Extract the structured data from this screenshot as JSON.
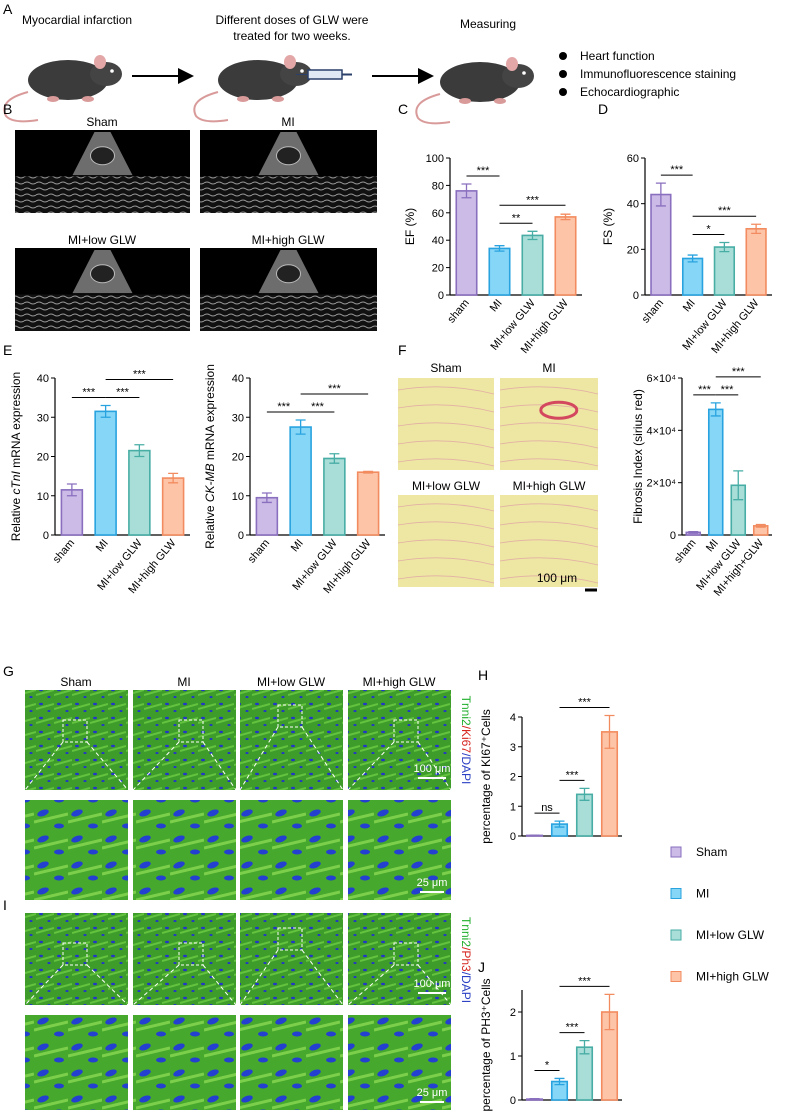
{
  "panels": {
    "A": {
      "letter": "A",
      "step1": "Myocardial infarction",
      "step2": [
        "Different doses of GLW were",
        "treated for two weeks."
      ],
      "step3": "Measuring",
      "bullets": [
        "Heart function",
        "Immunofluorescence staining",
        "Echocardiographic"
      ]
    },
    "B": {
      "letter": "B",
      "labels": [
        "Sham",
        "MI",
        "MI+low GLW",
        "MI+high GLW"
      ]
    },
    "C": {
      "letter": "C"
    },
    "D": {
      "letter": "D"
    },
    "E": {
      "letter": "E"
    },
    "F": {
      "letter": "F",
      "labels": [
        "Sham",
        "MI",
        "MI+low GLW",
        "MI+high GLW"
      ],
      "scale": "100 μm"
    },
    "G": {
      "letter": "G",
      "labels": [
        "Sham",
        "MI",
        "MI+low GLW",
        "MI+high GLW"
      ],
      "stain": [
        "Tnni2",
        "/Ki67",
        "/DAPI"
      ],
      "scale_top": "100 μm",
      "scale_bottom": "25 μm"
    },
    "H": {
      "letter": "H"
    },
    "I": {
      "letter": "I",
      "stain": [
        "Tnni2",
        "/Ph3",
        "/DAPI"
      ],
      "scale_top": "100 μm",
      "scale_bottom": "25 μm"
    },
    "J": {
      "letter": "J"
    }
  },
  "stain_colors": [
    "#1fae2b",
    "#d6241f",
    "#2a3fc4"
  ],
  "group_colors": {
    "fill": [
      "#cbbbe6",
      "#86d6f7",
      "#a9ded8",
      "#fdc4a8"
    ],
    "edge": [
      "#8a6fbf",
      "#29a3df",
      "#47ada5",
      "#f28b5f"
    ]
  },
  "legend": [
    "Sham",
    "MI",
    "MI+low GLW",
    "MI+high GLW"
  ],
  "chart_data": [
    {
      "type": "bar",
      "ylabel": "EF (%)",
      "categories": [
        "sham",
        "MI",
        "MI+low GLW",
        "MI+high GLW"
      ],
      "values": [
        76,
        34,
        43.5,
        57
      ],
      "errors": [
        5,
        2,
        3,
        2
      ],
      "ylim": [
        0,
        100
      ],
      "yticks": [
        0,
        20,
        40,
        60,
        80,
        100
      ],
      "annotations": [
        {
          "label": "***",
          "between": [
            0,
            1
          ]
        },
        {
          "label": "**",
          "between": [
            1,
            2
          ]
        },
        {
          "label": "***",
          "between": [
            1,
            3
          ]
        }
      ]
    },
    {
      "type": "bar",
      "ylabel": "FS (%)",
      "categories": [
        "sham",
        "MI",
        "MI+low GLW",
        "MI+high GLW"
      ],
      "values": [
        44,
        16,
        21,
        29
      ],
      "errors": [
        5,
        1.5,
        2,
        2
      ],
      "ylim": [
        0,
        60
      ],
      "yticks": [
        0,
        20,
        40,
        60
      ],
      "annotations": [
        {
          "label": "***",
          "between": [
            0,
            1
          ]
        },
        {
          "label": "*",
          "between": [
            1,
            2
          ]
        },
        {
          "label": "***",
          "between": [
            1,
            3
          ]
        }
      ]
    },
    {
      "type": "bar",
      "ylabel": [
        "Relative ",
        "cTnI",
        " mRNA expression"
      ],
      "categories": [
        "sham",
        "MI",
        "MI+low GLW",
        "MI+high GLW"
      ],
      "values": [
        11.5,
        31.5,
        21.5,
        14.5
      ],
      "errors": [
        1.5,
        1.5,
        1.5,
        1.2
      ],
      "ylim": [
        0,
        40
      ],
      "yticks": [
        0,
        10,
        20,
        30,
        40
      ],
      "annotations": [
        {
          "label": "***",
          "between": [
            0,
            1
          ]
        },
        {
          "label": "***",
          "between": [
            1,
            2
          ]
        },
        {
          "label": "***",
          "between": [
            1,
            3
          ]
        }
      ]
    },
    {
      "type": "bar",
      "ylabel": [
        "Relative ",
        "CK-MB",
        " mRNA expression"
      ],
      "categories": [
        "sham",
        "MI",
        "MI+low GLW",
        "MI+high GLW"
      ],
      "values": [
        9.5,
        27.5,
        19.5,
        16
      ],
      "errors": [
        1.2,
        1.8,
        1.2,
        0.2
      ],
      "ylim": [
        0,
        40
      ],
      "yticks": [
        0,
        10,
        20,
        30,
        40
      ],
      "annotations": [
        {
          "label": "***",
          "between": [
            0,
            1
          ]
        },
        {
          "label": "***",
          "between": [
            1,
            2
          ]
        },
        {
          "label": "***",
          "between": [
            1,
            3
          ]
        }
      ]
    },
    {
      "type": "bar",
      "ylabel": "Fibrosis Index (sirius red)",
      "categories": [
        "sham",
        "MI",
        "MI+low GLW",
        "MI+high+GLW"
      ],
      "values": [
        1000,
        48000,
        19000,
        3500
      ],
      "errors": [
        300,
        2500,
        5500,
        500
      ],
      "ylim": [
        0,
        60000
      ],
      "yticks": [
        0,
        {
          "value": 20000,
          "label": "2×10⁴"
        },
        {
          "value": 40000,
          "label": "4×10⁴"
        },
        {
          "value": 60000,
          "label": "6×10⁴"
        }
      ],
      "annotations": [
        {
          "label": "***",
          "between": [
            0,
            1
          ]
        },
        {
          "label": "***",
          "between": [
            1,
            2
          ]
        },
        {
          "label": "***",
          "between": [
            1,
            3
          ]
        }
      ]
    },
    {
      "type": "bar",
      "ylabel": "percentage of KI67⁺Cells",
      "values": [
        0.02,
        0.4,
        1.4,
        3.5
      ],
      "errors": [
        0.01,
        0.1,
        0.2,
        0.55
      ],
      "ylim": [
        0,
        4
      ],
      "yticks": [
        0,
        1,
        2,
        3,
        4
      ],
      "annotations": [
        {
          "label": "ns",
          "between": [
            0,
            1
          ]
        },
        {
          "label": "***",
          "between": [
            1,
            2
          ]
        },
        {
          "label": "***",
          "between": [
            1,
            3
          ]
        }
      ]
    },
    {
      "type": "bar",
      "ylabel": "percentage of PH3⁺Cells",
      "values": [
        0.02,
        0.42,
        1.2,
        2.0
      ],
      "errors": [
        0.01,
        0.07,
        0.15,
        0.4
      ],
      "ylim": [
        0,
        2.5
      ],
      "yticks": [
        0,
        1,
        2
      ],
      "annotations": [
        {
          "label": "*",
          "between": [
            0,
            1
          ]
        },
        {
          "label": "***",
          "between": [
            1,
            2
          ]
        },
        {
          "label": "***",
          "between": [
            1,
            3
          ]
        }
      ]
    }
  ]
}
